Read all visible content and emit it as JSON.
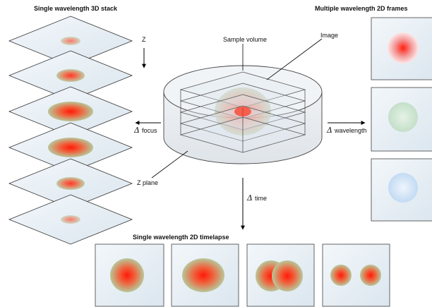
{
  "titles": {
    "stack": "Single wavelength 3D stack",
    "multi": "Multiple wavelength 2D frames",
    "timelapse": "Single wavelength 2D timelapse"
  },
  "labels": {
    "z": "Z",
    "sample_volume": "Sample volume",
    "image": "Image",
    "z_plane": "Z plane",
    "delta_symbol": "Δ",
    "focus": "focus",
    "wavelength": "wavelength",
    "time": "time"
  },
  "colors": {
    "red": "#ff2a1a",
    "green": "#bfe0c6",
    "blue": "#c7def5",
    "plane": "#e4ecf3"
  }
}
